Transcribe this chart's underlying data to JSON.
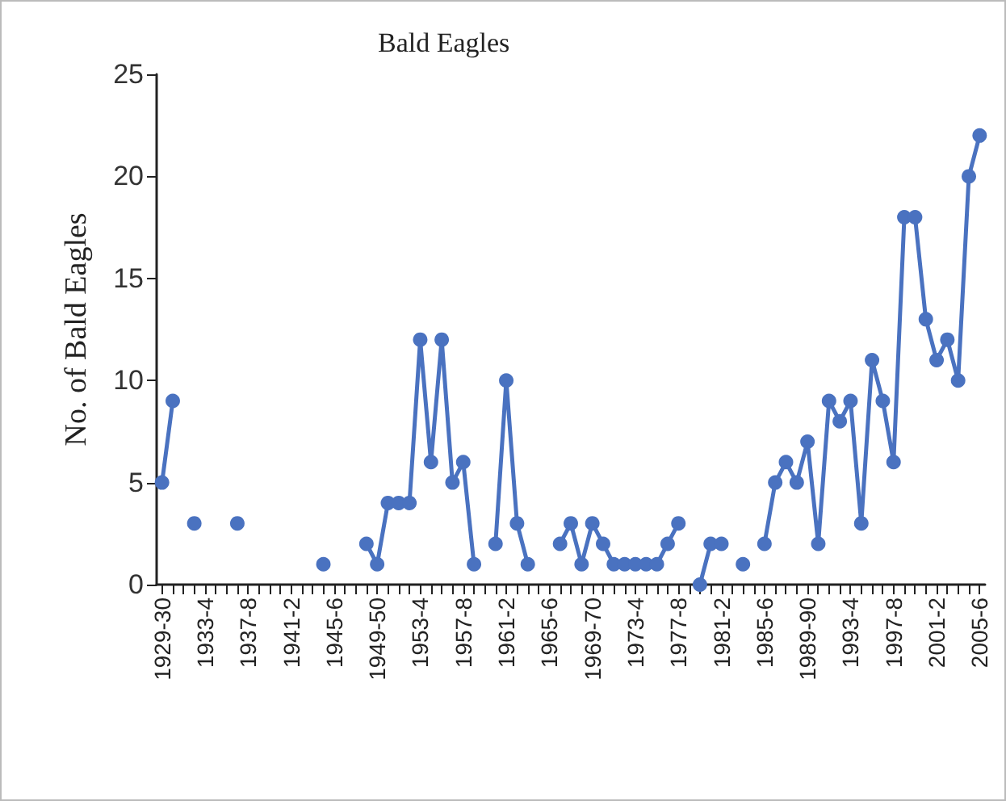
{
  "chart_data": {
    "type": "line",
    "title": "Bald Eagles",
    "ylabel": "No. of Bald Eagles",
    "categories": [
      "1929-30",
      null,
      null,
      null,
      "1933-4",
      null,
      null,
      null,
      "1937-8",
      null,
      null,
      null,
      "1941-2",
      null,
      null,
      null,
      "1945-6",
      null,
      null,
      null,
      "1949-50",
      null,
      null,
      null,
      "1953-4",
      null,
      null,
      null,
      "1957-8",
      null,
      null,
      null,
      "1961-2",
      null,
      null,
      null,
      "1965-6",
      null,
      null,
      null,
      "1969-70",
      null,
      null,
      null,
      "1973-4",
      null,
      null,
      null,
      "1977-8",
      null,
      null,
      null,
      "1981-2",
      null,
      null,
      null,
      "1985-6",
      null,
      null,
      null,
      "1989-90",
      null,
      null,
      null,
      "1993-4",
      null,
      null,
      null,
      "1997-8",
      null,
      null,
      null,
      "2001-2",
      null,
      null,
      null,
      "2005-6"
    ],
    "series": [
      {
        "color": "#4a72c0",
        "values": [
          5,
          9,
          null,
          3,
          null,
          null,
          null,
          3,
          null,
          null,
          null,
          null,
          null,
          null,
          null,
          1,
          null,
          null,
          null,
          2,
          1,
          4,
          4,
          4,
          12,
          6,
          12,
          5,
          6,
          1,
          null,
          2,
          10,
          3,
          1,
          null,
          null,
          2,
          3,
          1,
          3,
          2,
          1,
          1,
          1,
          1,
          1,
          2,
          3,
          null,
          0,
          2,
          2,
          null,
          1,
          null,
          2,
          5,
          6,
          5,
          7,
          2,
          9,
          8,
          9,
          3,
          11,
          9,
          6,
          18,
          18,
          13,
          11,
          12,
          10,
          20,
          22
        ]
      }
    ],
    "ylim": [
      0,
      25
    ],
    "yticks": [
      0,
      5,
      10,
      15,
      20,
      25
    ],
    "grid": false,
    "marker": "circle",
    "line_style": "solid"
  }
}
